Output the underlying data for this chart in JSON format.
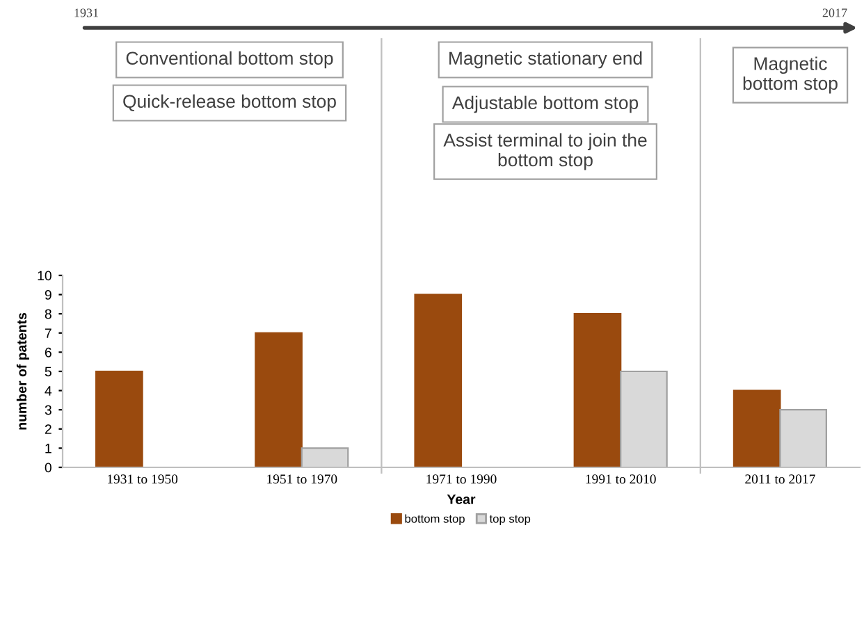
{
  "chart_data": {
    "type": "bar",
    "xlabel": "Year",
    "ylabel": "number of patents",
    "categories": [
      "1931 to 1950",
      "1951 to 1970",
      "1971 to 1990",
      "1991 to 2010",
      "2011 to 2017"
    ],
    "series": [
      {
        "name": "bottom stop",
        "color": "#9a4a0e",
        "values": [
          5,
          7,
          9,
          8,
          4
        ]
      },
      {
        "name": "top stop",
        "color": "#d9d9d9",
        "values": [
          0,
          1,
          0,
          5,
          3
        ]
      }
    ],
    "ylim": [
      0,
      10
    ],
    "yticks": [
      0,
      1,
      2,
      3,
      4,
      5,
      6,
      7,
      8,
      9,
      10
    ],
    "grid": false,
    "legend": "bottom",
    "annotations": [
      "1931",
      "2017",
      "Conventional bottom stop",
      "Quick-release bottom stop",
      "Magnetic stationary end",
      "Adjustable bottom stop",
      "Assist terminal to join the bottom stop",
      "Magnetic bottom stop"
    ]
  }
}
